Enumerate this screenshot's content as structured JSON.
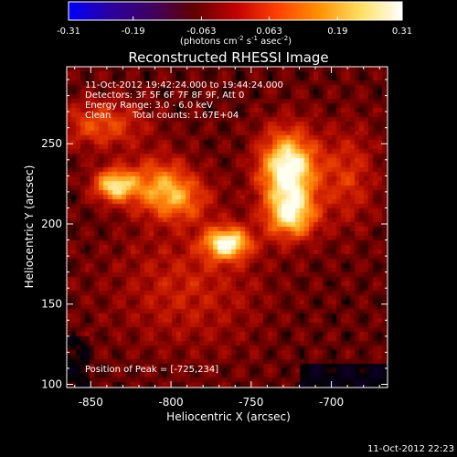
{
  "colorbar": {
    "tick_labels": [
      "-0.31",
      "-0.19",
      "-0.063",
      "0.063",
      "0.19",
      "0.31"
    ],
    "values": [
      -0.31,
      -0.19,
      -0.063,
      0.063,
      0.19,
      0.31
    ],
    "range": [
      -0.31,
      0.31
    ],
    "units_text": "(photons cm",
    "units_exp1": "-2",
    "units_mid": " s",
    "units_exp2": "-1",
    "units_mid2": " asec",
    "units_exp3": "-2",
    "units_end": ")",
    "colormap": [
      "#0000ff",
      "#2a00a0",
      "#400060",
      "#600000",
      "#c00000",
      "#ff4000",
      "#ff9000",
      "#ffe060",
      "#ffffff"
    ]
  },
  "chart_data": {
    "type": "heatmap",
    "title": "Reconstructed RHESSI Image",
    "xlabel": "Heliocentric X (arcsec)",
    "ylabel": "Heliocentric Y (arcsec)",
    "xlim": [
      -865,
      -665
    ],
    "ylim": [
      98,
      298
    ],
    "x_ticks": [
      -850,
      -800,
      -750,
      -700
    ],
    "x_tick_labels": [
      "-850",
      "-800",
      "-750",
      "-700"
    ],
    "y_ticks": [
      100,
      150,
      200,
      250
    ],
    "y_tick_labels": [
      "100",
      "150",
      "200",
      "250"
    ],
    "sources": [
      {
        "x": -727,
        "y": 234,
        "peak": 0.31,
        "sx": 12,
        "sy": 16
      },
      {
        "x": -725,
        "y": 205,
        "peak": 0.22,
        "sx": 11,
        "sy": 10
      },
      {
        "x": -765,
        "y": 188,
        "peak": 0.28,
        "sx": 10,
        "sy": 7
      },
      {
        "x": -835,
        "y": 224,
        "peak": 0.24,
        "sx": 9,
        "sy": 7
      },
      {
        "x": -808,
        "y": 225,
        "peak": 0.14,
        "sx": 14,
        "sy": 12
      },
      {
        "x": -795,
        "y": 215,
        "peak": 0.12,
        "sx": 14,
        "sy": 10
      },
      {
        "x": -843,
        "y": 262,
        "peak": 0.12,
        "sx": 18,
        "sy": 10
      },
      {
        "x": -790,
        "y": 160,
        "peak": 0.07,
        "sx": 30,
        "sy": 25
      },
      {
        "x": -690,
        "y": 230,
        "peak": 0.09,
        "sx": 12,
        "sy": 20
      }
    ],
    "annotations": {
      "time_range": "11-Oct-2012 19:42:24.000 to 19:44:24.000",
      "detectors": "Detectors: 3F 5F 6F 7F 8F 9F, Att 0",
      "energy": "Energy Range: 3.0 - 6.0 keV",
      "method": "Clean",
      "counts": "Total counts: 1.67E+04",
      "peak": "Position of Peak = [-725,234]"
    }
  },
  "footer": {
    "timestamp": "11-Oct-2012 22:23"
  }
}
